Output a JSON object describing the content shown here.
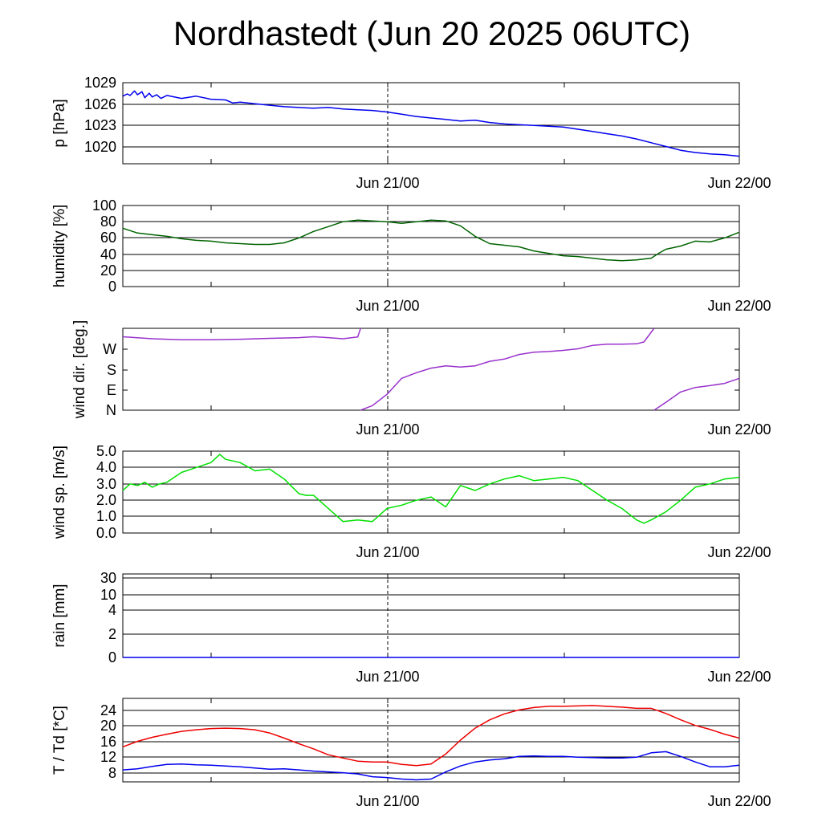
{
  "title": "Nordhastedt (Jun 20 2025 06UTC)",
  "x_tick_labels": [
    "Jun 21/00",
    "Jun 22/00"
  ],
  "chart_data": [
    {
      "type": "line",
      "ylabel": "p [hPa]",
      "ylim": [
        1018.2,
        1029
      ],
      "yticks": [
        1029,
        1026,
        1023,
        1020
      ],
      "grid": true,
      "x_range_hours": [
        0,
        42
      ],
      "series": [
        {
          "color": "#0000ee",
          "x": [
            0,
            0.3,
            0.5,
            0.8,
            1,
            1.3,
            1.5,
            1.8,
            2,
            2.3,
            2.6,
            3,
            4,
            5,
            6,
            7,
            7.5,
            8,
            9,
            10,
            11,
            12,
            13,
            14,
            15,
            16,
            17,
            18,
            19,
            20,
            21,
            22,
            23,
            24,
            25,
            26,
            27,
            28,
            29,
            30,
            31,
            32,
            33,
            34,
            35,
            36,
            37,
            38,
            39,
            40,
            41,
            42
          ],
          "values": [
            1027.2,
            1027.5,
            1027.3,
            1027.9,
            1027.4,
            1027.8,
            1027.0,
            1027.6,
            1027.1,
            1027.4,
            1026.9,
            1027.3,
            1026.9,
            1027.2,
            1026.8,
            1026.7,
            1026.3,
            1026.4,
            1026.2,
            1026.0,
            1025.8,
            1025.7,
            1025.6,
            1025.7,
            1025.5,
            1025.4,
            1025.3,
            1025.1,
            1024.8,
            1024.5,
            1024.3,
            1024.1,
            1023.9,
            1024.0,
            1023.7,
            1023.5,
            1023.4,
            1023.3,
            1023.2,
            1023.1,
            1022.8,
            1022.5,
            1022.2,
            1021.9,
            1021.5,
            1021.0,
            1020.5,
            1020.0,
            1019.7,
            1019.5,
            1019.4,
            1019.2
          ]
        }
      ]
    },
    {
      "type": "line",
      "ylabel": "humidity [%]",
      "ylim": [
        0,
        100
      ],
      "yticks": [
        100,
        80,
        60,
        40,
        20,
        0
      ],
      "grid": true,
      "x_range_hours": [
        0,
        42
      ],
      "series": [
        {
          "color": "#006400",
          "x": [
            0,
            1,
            2,
            3,
            4,
            5,
            6,
            7,
            8,
            9,
            10,
            11,
            12,
            13,
            14,
            15,
            16,
            17,
            18,
            19,
            20,
            21,
            22,
            23,
            24,
            25,
            26,
            27,
            28,
            29,
            30,
            31,
            32,
            33,
            34,
            35,
            36,
            36.5,
            37,
            38,
            39,
            40,
            41,
            42
          ],
          "values": [
            72,
            66,
            64,
            62,
            59,
            57,
            56,
            54,
            53,
            52,
            52,
            54,
            60,
            68,
            74,
            80,
            82,
            81,
            80,
            78,
            80,
            82,
            81,
            75,
            62,
            53,
            51,
            49,
            44,
            41,
            38,
            37,
            35,
            33,
            32,
            33,
            35,
            41,
            46,
            50,
            56,
            55,
            60,
            67
          ]
        }
      ]
    },
    {
      "type": "line",
      "ylabel": "wind dir. [deg.]",
      "ylim": [
        0,
        360
      ],
      "yticks": [
        270,
        180,
        90,
        0
      ],
      "ytick_labels": [
        "W",
        "S",
        "E",
        "N"
      ],
      "grid": false,
      "x_range_hours": [
        0,
        42
      ],
      "series": [
        {
          "color": "#9932cc",
          "x": [
            0,
            2,
            4,
            6,
            8,
            10,
            12,
            13,
            14,
            15,
            16,
            16.2
          ],
          "values": [
            323,
            314,
            310,
            310,
            312,
            316,
            319,
            323,
            319,
            314,
            322,
            360
          ]
        },
        {
          "color": "#9932cc",
          "x": [
            16.2,
            17,
            18,
            19,
            20,
            21,
            22,
            23,
            24,
            25,
            26,
            27,
            28,
            29,
            30,
            31,
            32,
            33,
            34,
            35,
            35.5,
            36.2
          ],
          "values": [
            0,
            20,
            70,
            140,
            165,
            185,
            195,
            190,
            195,
            215,
            225,
            245,
            255,
            258,
            263,
            270,
            285,
            290,
            290,
            292,
            300,
            360
          ]
        },
        {
          "color": "#9932cc",
          "x": [
            36.2,
            37,
            38,
            39,
            40,
            41,
            42
          ],
          "values": [
            0,
            35,
            80,
            100,
            108,
            118,
            140
          ]
        }
      ]
    },
    {
      "type": "line",
      "ylabel": "wind sp. [m/s]",
      "ylim": [
        0,
        5.0
      ],
      "yticks": [
        5.0,
        4.0,
        3.0,
        2.0,
        1.0,
        0.0
      ],
      "ytick_labels": [
        "5.0",
        "4.0",
        "3.0",
        "2.0",
        "1.0",
        "0.0"
      ],
      "grid": true,
      "x_range_hours": [
        0,
        42
      ],
      "series": [
        {
          "color": "#00e000",
          "x": [
            0,
            0.5,
            1,
            1.5,
            2,
            2.5,
            3,
            4,
            5,
            6,
            6.6,
            7,
            8,
            9,
            10,
            11,
            12,
            12.5,
            13,
            14,
            15,
            16,
            17,
            18,
            19,
            20,
            21,
            22,
            23,
            24,
            25,
            26,
            27,
            28,
            29,
            30,
            31,
            32,
            33,
            34,
            35,
            35.5,
            36,
            37,
            38,
            39,
            40,
            41,
            42
          ],
          "values": [
            2.6,
            3.0,
            2.9,
            3.1,
            2.8,
            3.0,
            3.1,
            3.7,
            4.0,
            4.3,
            4.8,
            4.5,
            4.3,
            3.8,
            3.9,
            3.3,
            2.4,
            2.3,
            2.3,
            1.5,
            0.7,
            0.8,
            0.7,
            1.5,
            1.7,
            2.0,
            2.2,
            1.6,
            2.9,
            2.6,
            3.0,
            3.3,
            3.5,
            3.2,
            3.3,
            3.4,
            3.2,
            2.6,
            2.0,
            1.5,
            0.8,
            0.6,
            0.8,
            1.3,
            2.0,
            2.8,
            3.0,
            3.3,
            3.4
          ]
        }
      ]
    },
    {
      "type": "line",
      "ylabel": "rain [mm]",
      "ytick_labels": [
        "30",
        "10",
        "4",
        "2",
        "0"
      ],
      "grid": true,
      "x_range_hours": [
        0,
        42
      ],
      "series": [
        {
          "color": "#0000ee",
          "x": [
            0,
            42
          ],
          "values": [
            0,
            0
          ]
        }
      ]
    },
    {
      "type": "line",
      "ylabel": "T / Td [*C]",
      "ylim": [
        6,
        27
      ],
      "yticks": [
        24,
        20,
        16,
        12,
        8
      ],
      "grid": true,
      "x_range_hours": [
        0,
        42
      ],
      "series": [
        {
          "color": "#ee0000",
          "x": [
            0,
            1,
            2,
            3,
            4,
            5,
            6,
            7,
            8,
            9,
            10,
            11,
            12,
            13,
            14,
            15,
            16,
            17,
            18,
            19,
            20,
            21,
            22,
            23,
            24,
            25,
            26,
            27,
            28,
            29,
            30,
            31,
            32,
            33,
            34,
            35,
            36,
            37,
            38,
            39,
            40,
            41,
            42
          ],
          "values": [
            14.8,
            16.2,
            17.2,
            18.0,
            18.7,
            19.1,
            19.4,
            19.5,
            19.4,
            19.1,
            18.3,
            17.0,
            15.6,
            14.3,
            12.8,
            12.0,
            11.2,
            11.0,
            11.0,
            10.4,
            10.1,
            10.5,
            13.0,
            16.5,
            19.5,
            21.6,
            23.1,
            24.1,
            24.7,
            25.0,
            25.0,
            25.1,
            25.2,
            25.0,
            24.8,
            24.5,
            24.5,
            23.2,
            21.6,
            20.2,
            19.2,
            18.0,
            17.0
          ]
        },
        {
          "color": "#0000ee",
          "x": [
            0,
            1,
            2,
            3,
            4,
            5,
            6,
            7,
            8,
            9,
            10,
            11,
            12,
            13,
            14,
            15,
            16,
            17,
            18,
            19,
            20,
            21,
            22,
            23,
            24,
            25,
            26,
            27,
            28,
            29,
            30,
            31,
            32,
            33,
            34,
            35,
            36,
            37,
            38,
            39,
            40,
            41,
            42
          ],
          "values": [
            9.0,
            9.3,
            9.9,
            10.4,
            10.5,
            10.3,
            10.2,
            10.0,
            9.8,
            9.5,
            9.2,
            9.3,
            9.0,
            8.7,
            8.5,
            8.3,
            8.0,
            7.3,
            7.1,
            6.7,
            6.5,
            6.7,
            8.5,
            10.0,
            11.0,
            11.5,
            11.8,
            12.4,
            12.5,
            12.4,
            12.4,
            12.2,
            12.1,
            12.0,
            12.0,
            12.2,
            13.3,
            13.6,
            12.4,
            11.0,
            9.8,
            9.8,
            10.2
          ]
        }
      ]
    }
  ]
}
